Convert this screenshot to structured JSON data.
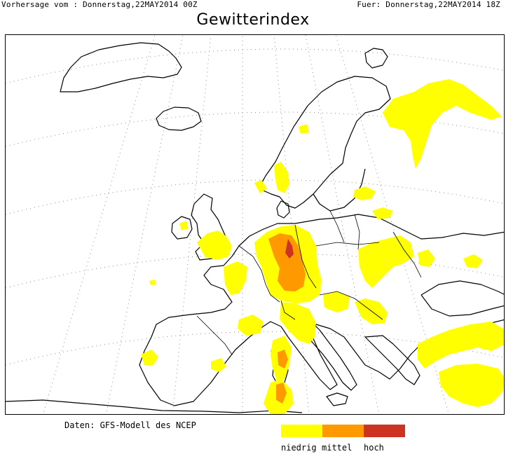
{
  "header": {
    "forecast_from": "Vorhersage vom : Donnerstag,22MAY2014 00Z",
    "valid_for": "Fuer: Donnerstag,22MAY2014 18Z"
  },
  "title": "Gewitterindex",
  "source": "Daten: GFS-Modell des NCEP",
  "legend": {
    "items": [
      {
        "label": "niedrig",
        "color": "#ffff00"
      },
      {
        "label": "mittel",
        "color": "#ff9900"
      },
      {
        "label": "hoch",
        "color": "#cc3322"
      }
    ]
  },
  "map": {
    "land_color": "#ffffff",
    "coast_color": "#000000",
    "graticule_color": "#888888"
  }
}
